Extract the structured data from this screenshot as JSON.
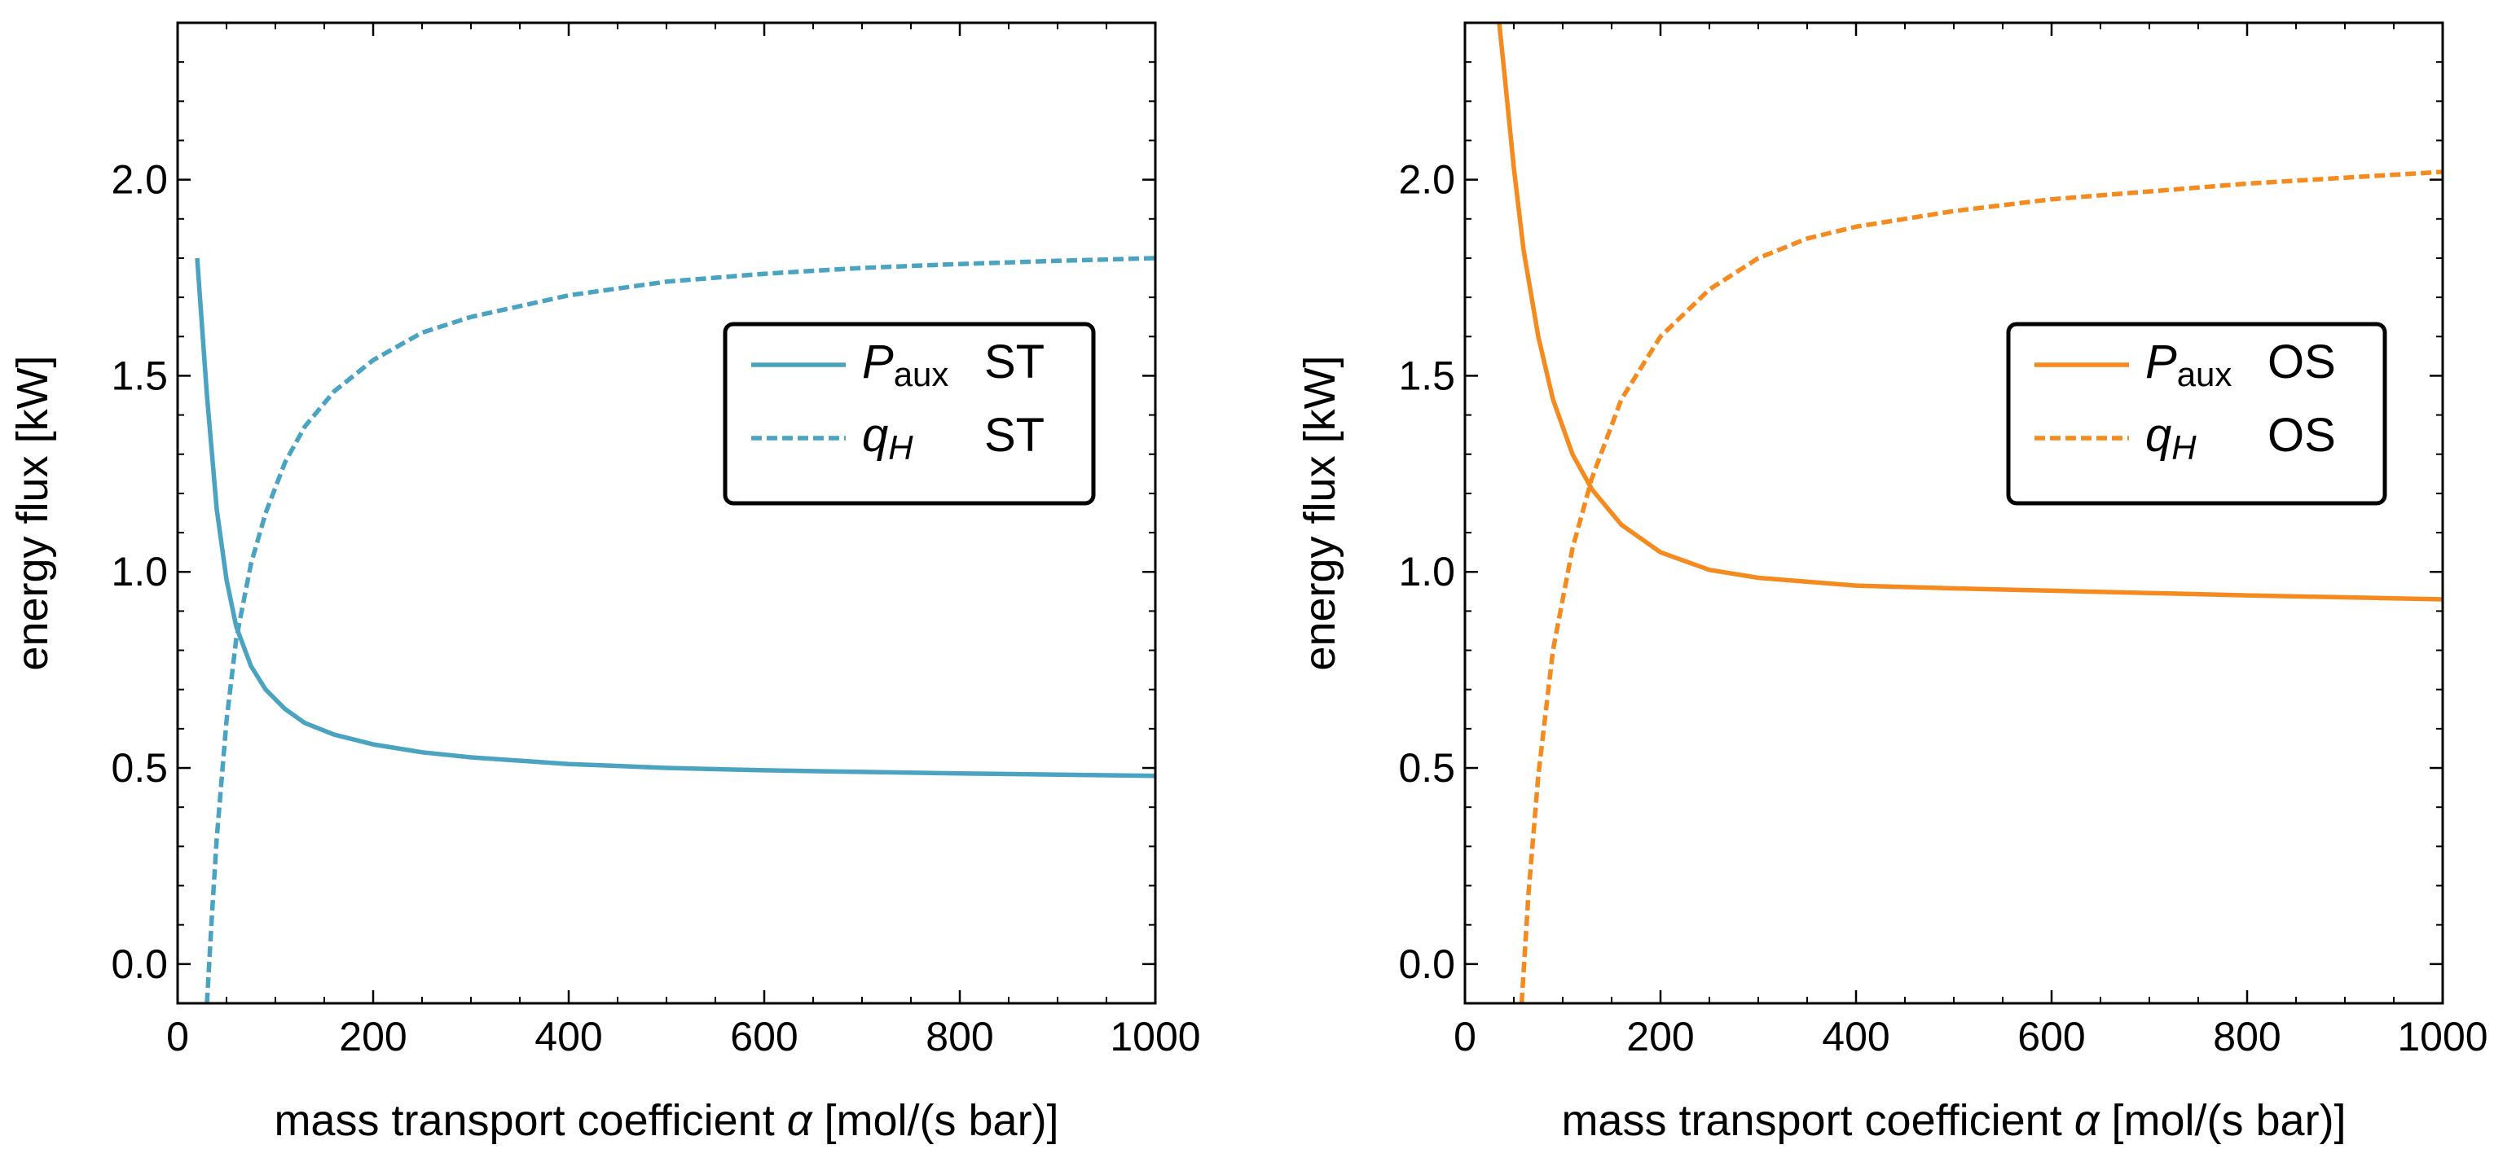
{
  "chart_data": [
    {
      "type": "line",
      "xlabel_prefix": "mass transport coefficient ",
      "xlabel_symbol": "α",
      "xlabel_suffix": " [mol/(s bar)]",
      "ylabel": "energy flux [kW]",
      "xlim": [
        0,
        1000
      ],
      "ylim": [
        -0.1,
        2.4
      ],
      "x_ticks": [
        "0",
        "200",
        "400",
        "600",
        "800",
        "1000"
      ],
      "y_ticks": [
        "0.0",
        "0.5",
        "1.0",
        "1.5",
        "2.0"
      ],
      "legend_position": "center-right",
      "color": "#4aa3c1",
      "series": [
        {
          "name": "P_aux ST",
          "label_main": "P",
          "label_sub": "aux",
          "label_tag": "ST",
          "style": "solid",
          "x": [
            20,
            30,
            40,
            50,
            60,
            75,
            90,
            110,
            130,
            160,
            200,
            250,
            300,
            400,
            500,
            600,
            700,
            800,
            900,
            1000
          ],
          "y": [
            1.8,
            1.45,
            1.16,
            0.98,
            0.86,
            0.76,
            0.7,
            0.65,
            0.615,
            0.585,
            0.56,
            0.54,
            0.527,
            0.51,
            0.5,
            0.494,
            0.49,
            0.486,
            0.483,
            0.48
          ]
        },
        {
          "name": "q_H ST",
          "label_main": "q",
          "label_sub": "H",
          "label_tag": "ST",
          "style": "dashed",
          "x": [
            30,
            35,
            40,
            50,
            60,
            75,
            90,
            110,
            130,
            160,
            200,
            250,
            300,
            400,
            500,
            600,
            700,
            800,
            900,
            1000
          ],
          "y": [
            -0.1,
            0.12,
            0.32,
            0.62,
            0.83,
            1.02,
            1.15,
            1.28,
            1.37,
            1.46,
            1.54,
            1.61,
            1.65,
            1.705,
            1.74,
            1.76,
            1.775,
            1.785,
            1.793,
            1.8
          ]
        }
      ]
    },
    {
      "type": "line",
      "xlabel_prefix": "mass transport coefficient ",
      "xlabel_symbol": "α",
      "xlabel_suffix": " [mol/(s bar)]",
      "ylabel": "energy flux [kW]",
      "xlim": [
        0,
        1000
      ],
      "ylim": [
        -0.1,
        2.4
      ],
      "x_ticks": [
        "0",
        "200",
        "400",
        "600",
        "800",
        "1000"
      ],
      "y_ticks": [
        "0.0",
        "0.5",
        "1.0",
        "1.5",
        "2.0"
      ],
      "legend_position": "center-right",
      "color": "#f58a1f",
      "series": [
        {
          "name": "P_aux OS",
          "label_main": "P",
          "label_sub": "aux",
          "label_tag": "OS",
          "style": "solid",
          "x": [
            35,
            40,
            50,
            60,
            75,
            90,
            110,
            130,
            160,
            200,
            250,
            300,
            400,
            500,
            600,
            700,
            800,
            900,
            1000
          ],
          "y": [
            2.4,
            2.28,
            2.03,
            1.82,
            1.6,
            1.44,
            1.3,
            1.21,
            1.12,
            1.05,
            1.005,
            0.985,
            0.965,
            0.958,
            0.952,
            0.946,
            0.94,
            0.935,
            0.93
          ]
        },
        {
          "name": "q_H OS",
          "label_main": "q",
          "label_sub": "H",
          "label_tag": "OS",
          "style": "dashed",
          "x": [
            58,
            65,
            75,
            90,
            110,
            130,
            160,
            200,
            250,
            300,
            350,
            400,
            500,
            600,
            700,
            800,
            900,
            1000
          ],
          "y": [
            -0.1,
            0.18,
            0.48,
            0.8,
            1.06,
            1.24,
            1.44,
            1.6,
            1.72,
            1.8,
            1.85,
            1.88,
            1.92,
            1.95,
            1.97,
            1.99,
            2.005,
            2.02
          ]
        }
      ]
    }
  ]
}
